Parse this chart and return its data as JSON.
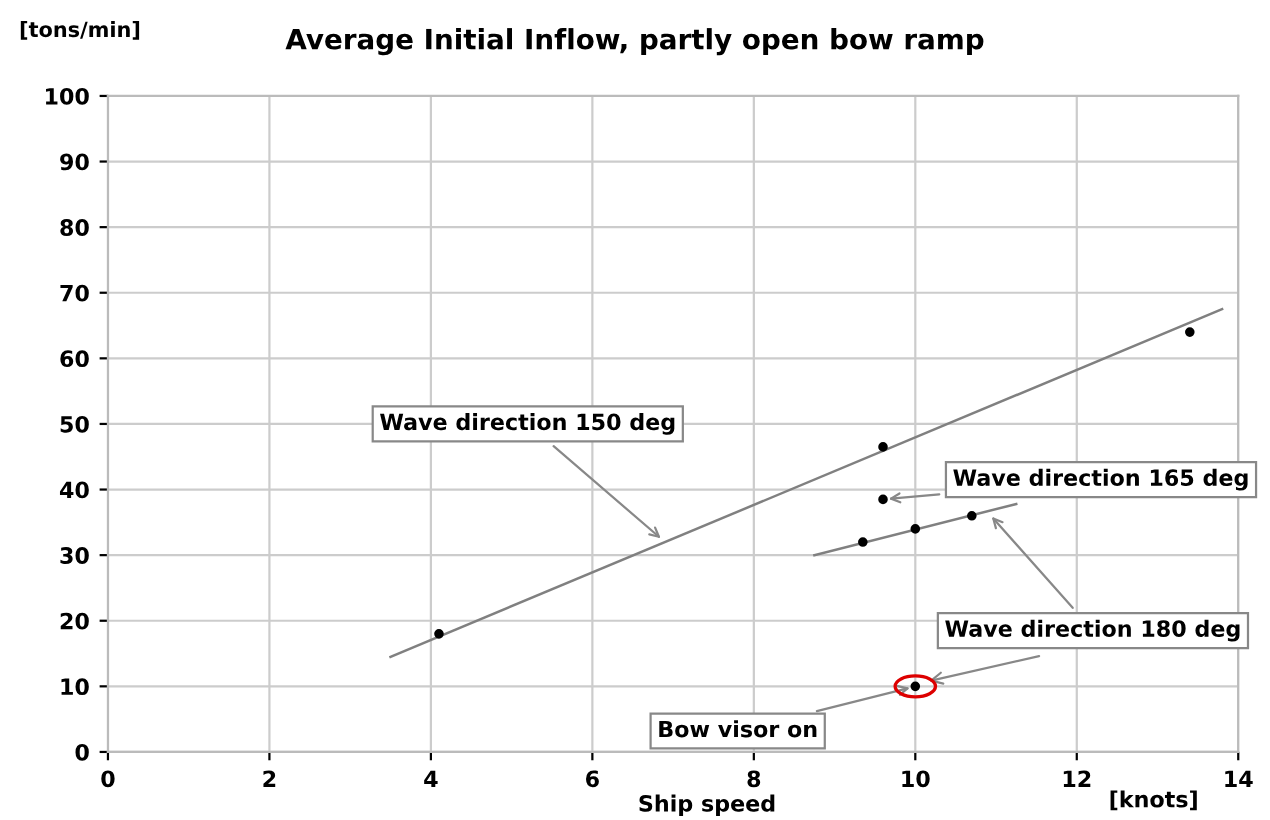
{
  "chart_data": {
    "type": "scatter",
    "title": "Average Initial Inflow, partly open bow ramp",
    "xlabel": "Ship speed",
    "ylabel": "[tons/min]",
    "xlim": [
      0,
      14
    ],
    "ylim": [
      0,
      100
    ],
    "xticks": [
      0,
      2,
      4,
      6,
      8,
      10,
      12,
      14
    ],
    "yticks": [
      0,
      10,
      20,
      30,
      40,
      50,
      60,
      70,
      80,
      90,
      100
    ],
    "grid": true,
    "marker": "circle",
    "series": [
      {
        "color": "#000000",
        "x": [
          4.1,
          9.6,
          13.4
        ],
        "values": [
          18,
          46.5,
          64
        ]
      },
      {
        "color": "#000000",
        "x": [
          9.6
        ],
        "values": [
          38.5
        ]
      },
      {
        "color": "#000000",
        "x": [
          9.35,
          10,
          10.7
        ],
        "values": [
          32,
          34,
          36
        ]
      },
      {
        "color": "#000000",
        "x": [
          10
        ],
        "values": [
          10
        ]
      },
      {
        "type": "line",
        "marker": "none",
        "color": "#808080",
        "x": [
          3.5,
          13.8
        ],
        "values": [
          14.5,
          67.5
        ]
      },
      {
        "type": "line",
        "marker": "none",
        "color": "#808080",
        "x": [
          8.75,
          11.25
        ],
        "values": [
          30,
          37.8
        ]
      }
    ],
    "annotations": [
      {
        "text": "Wave direction 150 deg",
        "x": 6.9,
        "y": 32
      },
      {
        "text": "Wave direction 165 deg",
        "x": 9.6,
        "y": 38.5
      },
      {
        "text": "Wave direction 180 deg",
        "x": 10.9,
        "y": 36.5
      },
      {
        "text": "Bow visor on",
        "x": 10,
        "y": 10
      },
      "[knots]"
    ]
  }
}
